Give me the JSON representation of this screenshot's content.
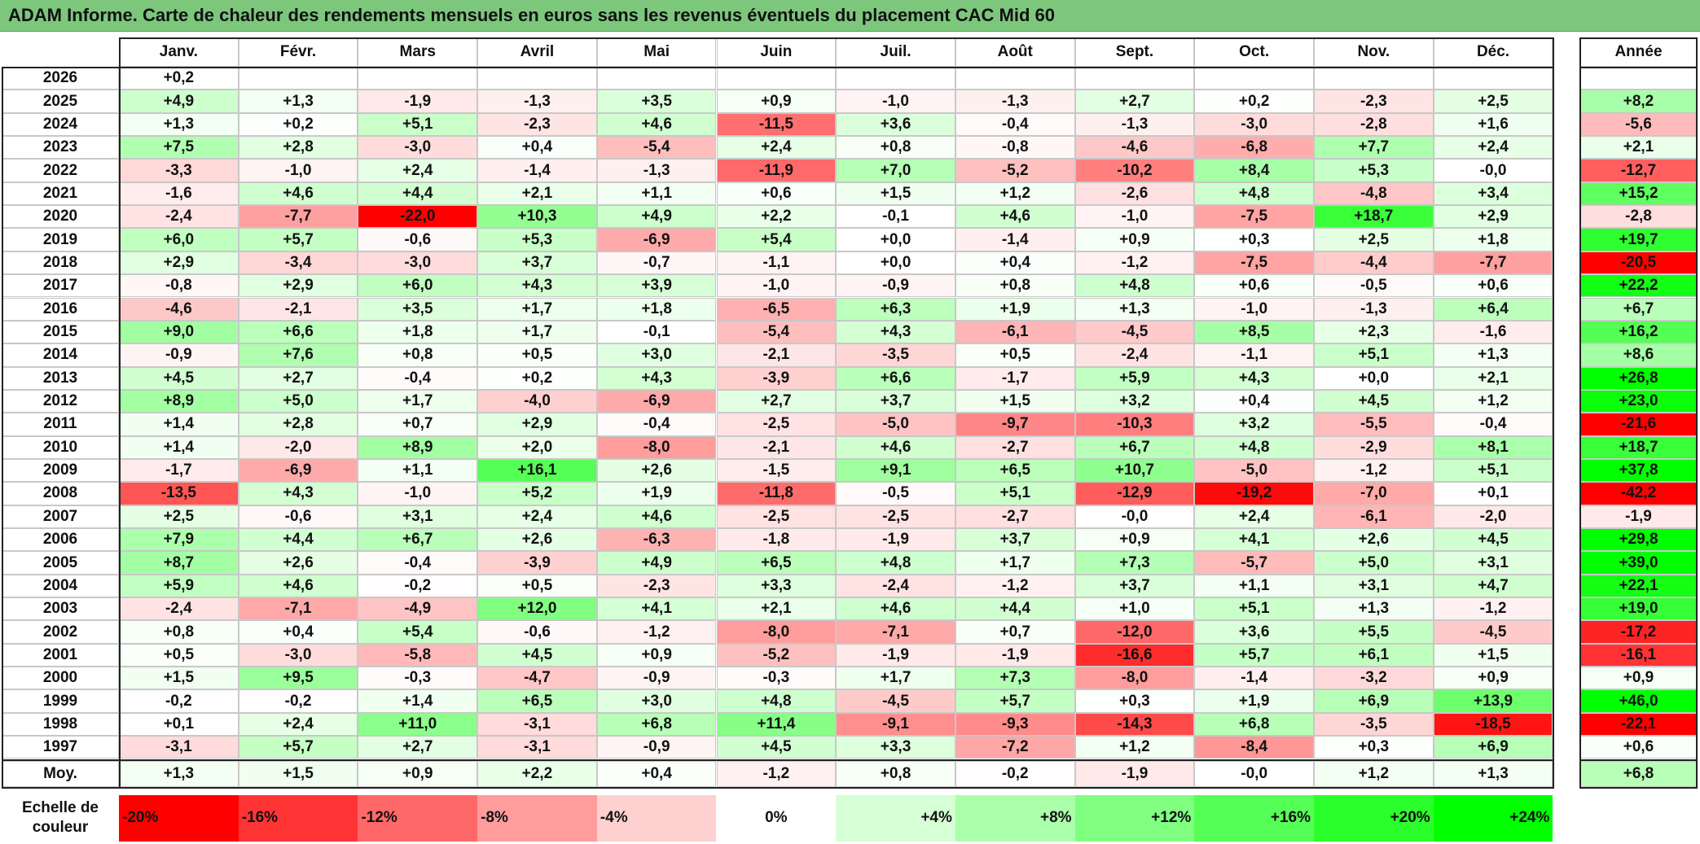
{
  "title": "ADAM Informe. Carte de chaleur des rendements mensuels en euros sans les revenus éventuels du placement CAC Mid 60",
  "months": [
    "Janv.",
    "Févr.",
    "Mars",
    "Avril",
    "Mai",
    "Juin",
    "Juil.",
    "Août",
    "Sept.",
    "Oct.",
    "Nov.",
    "Déc."
  ],
  "year_header": "Année",
  "avg_label": "Moy.",
  "scale_label": "Echelle de couleur",
  "scale_values": [
    "-20%",
    "-16%",
    "-12%",
    "-8%",
    "-4%",
    "0%",
    "+4%",
    "+8%",
    "+12%",
    "+16%",
    "+20%",
    "+24%"
  ],
  "colors": {
    "negative_max": "#ff0000",
    "positive_max": "#00ff00",
    "neutral": "#ffffff",
    "title_bg": "#7dc77d"
  },
  "chart_data": {
    "type": "heatmap",
    "rows": [
      {
        "year": "2026",
        "values": [
          "+0,2",
          "",
          "",
          "",
          "",
          "",
          "",
          "",
          "",
          "",
          "",
          ""
        ],
        "annual": ""
      },
      {
        "year": "2025",
        "values": [
          "+4,9",
          "+1,3",
          "-1,9",
          "-1,3",
          "+3,5",
          "+0,9",
          "-1,0",
          "-1,3",
          "+2,7",
          "+0,2",
          "-2,3",
          "+2,5"
        ],
        "annual": "+8,2"
      },
      {
        "year": "2024",
        "values": [
          "+1,3",
          "+0,2",
          "+5,1",
          "-2,3",
          "+4,6",
          "-11,5",
          "+3,6",
          "-0,4",
          "-1,3",
          "-3,0",
          "-2,8",
          "+1,6"
        ],
        "annual": "-5,6"
      },
      {
        "year": "2023",
        "values": [
          "+7,5",
          "+2,8",
          "-3,0",
          "+0,4",
          "-5,4",
          "+2,4",
          "+0,8",
          "-0,8",
          "-4,6",
          "-6,8",
          "+7,7",
          "+2,4"
        ],
        "annual": "+2,1"
      },
      {
        "year": "2022",
        "values": [
          "-3,3",
          "-1,0",
          "+2,4",
          "-1,4",
          "-1,3",
          "-11,9",
          "+7,0",
          "-5,2",
          "-10,2",
          "+8,4",
          "+5,3",
          "-0,0"
        ],
        "annual": "-12,7"
      },
      {
        "year": "2021",
        "values": [
          "-1,6",
          "+4,6",
          "+4,4",
          "+2,1",
          "+1,1",
          "+0,6",
          "+1,5",
          "+1,2",
          "-2,6",
          "+4,8",
          "-4,8",
          "+3,4"
        ],
        "annual": "+15,2"
      },
      {
        "year": "2020",
        "values": [
          "-2,4",
          "-7,7",
          "-22,0",
          "+10,3",
          "+4,9",
          "+2,2",
          "-0,1",
          "+4,6",
          "-1,0",
          "-7,5",
          "+18,7",
          "+2,9"
        ],
        "annual": "-2,8"
      },
      {
        "year": "2019",
        "values": [
          "+6,0",
          "+5,7",
          "-0,6",
          "+5,3",
          "-6,9",
          "+5,4",
          "+0,0",
          "-1,4",
          "+0,9",
          "+0,3",
          "+2,5",
          "+1,8"
        ],
        "annual": "+19,7"
      },
      {
        "year": "2018",
        "values": [
          "+2,9",
          "-3,4",
          "-3,0",
          "+3,7",
          "-0,7",
          "-1,1",
          "+0,0",
          "+0,4",
          "-1,2",
          "-7,5",
          "-4,4",
          "-7,7"
        ],
        "annual": "-20,5"
      },
      {
        "year": "2017",
        "values": [
          "-0,8",
          "+2,9",
          "+6,0",
          "+4,3",
          "+3,9",
          "-1,0",
          "-0,9",
          "+0,8",
          "+4,8",
          "+0,6",
          "-0,5",
          "+0,6"
        ],
        "annual": "+22,2"
      },
      {
        "year": "2016",
        "values": [
          "-4,6",
          "-2,1",
          "+3,5",
          "+1,7",
          "+1,8",
          "-6,5",
          "+6,3",
          "+1,9",
          "+1,3",
          "-1,0",
          "-1,3",
          "+6,4"
        ],
        "annual": "+6,7"
      },
      {
        "year": "2015",
        "values": [
          "+9,0",
          "+6,6",
          "+1,8",
          "+1,7",
          "-0,1",
          "-5,4",
          "+4,3",
          "-6,1",
          "-4,5",
          "+8,5",
          "+2,3",
          "-1,6"
        ],
        "annual": "+16,2"
      },
      {
        "year": "2014",
        "values": [
          "-0,9",
          "+7,6",
          "+0,8",
          "+0,5",
          "+3,0",
          "-2,1",
          "-3,5",
          "+0,5",
          "-2,4",
          "-1,1",
          "+5,1",
          "+1,3"
        ],
        "annual": "+8,6"
      },
      {
        "year": "2013",
        "values": [
          "+4,5",
          "+2,7",
          "-0,4",
          "+0,2",
          "+4,3",
          "-3,9",
          "+6,6",
          "-1,7",
          "+5,9",
          "+4,3",
          "+0,0",
          "+2,1"
        ],
        "annual": "+26,8"
      },
      {
        "year": "2012",
        "values": [
          "+8,9",
          "+5,0",
          "+1,7",
          "-4,0",
          "-6,9",
          "+2,7",
          "+3,7",
          "+1,5",
          "+3,2",
          "+0,4",
          "+4,5",
          "+1,2"
        ],
        "annual": "+23,0"
      },
      {
        "year": "2011",
        "values": [
          "+1,4",
          "+2,8",
          "+0,7",
          "+2,9",
          "-0,4",
          "-2,5",
          "-5,0",
          "-9,7",
          "-10,3",
          "+3,2",
          "-5,5",
          "-0,4"
        ],
        "annual": "-21,6"
      },
      {
        "year": "2010",
        "values": [
          "+1,4",
          "-2,0",
          "+8,9",
          "+2,0",
          "-8,0",
          "-2,1",
          "+4,6",
          "-2,7",
          "+6,7",
          "+4,8",
          "-2,9",
          "+8,1"
        ],
        "annual": "+18,7"
      },
      {
        "year": "2009",
        "values": [
          "-1,7",
          "-6,9",
          "+1,1",
          "+16,1",
          "+2,6",
          "-1,5",
          "+9,1",
          "+6,5",
          "+10,7",
          "-5,0",
          "-1,2",
          "+5,1"
        ],
        "annual": "+37,8"
      },
      {
        "year": "2008",
        "values": [
          "-13,5",
          "+4,3",
          "-1,0",
          "+5,2",
          "+1,9",
          "-11,8",
          "-0,5",
          "+5,1",
          "-12,9",
          "-19,2",
          "-7,0",
          "+0,1"
        ],
        "annual": "-42,2"
      },
      {
        "year": "2007",
        "values": [
          "+2,5",
          "-0,6",
          "+3,1",
          "+2,4",
          "+4,6",
          "-2,5",
          "-2,5",
          "-2,7",
          "-0,0",
          "+2,4",
          "-6,1",
          "-2,0"
        ],
        "annual": "-1,9"
      },
      {
        "year": "2006",
        "values": [
          "+7,9",
          "+4,4",
          "+6,7",
          "+2,6",
          "-6,3",
          "-1,8",
          "-1,9",
          "+3,7",
          "+0,9",
          "+4,1",
          "+2,6",
          "+4,5"
        ],
        "annual": "+29,8"
      },
      {
        "year": "2005",
        "values": [
          "+8,7",
          "+2,6",
          "-0,4",
          "-3,9",
          "+4,9",
          "+6,5",
          "+4,8",
          "+1,7",
          "+7,3",
          "-5,7",
          "+5,0",
          "+3,1"
        ],
        "annual": "+39,0"
      },
      {
        "year": "2004",
        "values": [
          "+5,9",
          "+4,6",
          "-0,2",
          "+0,5",
          "-2,3",
          "+3,3",
          "-2,4",
          "-1,2",
          "+3,7",
          "+1,1",
          "+3,1",
          "+4,7"
        ],
        "annual": "+22,1"
      },
      {
        "year": "2003",
        "values": [
          "-2,4",
          "-7,1",
          "-4,9",
          "+12,0",
          "+4,1",
          "+2,1",
          "+4,6",
          "+4,4",
          "+1,0",
          "+5,1",
          "+1,3",
          "-1,2"
        ],
        "annual": "+19,0"
      },
      {
        "year": "2002",
        "values": [
          "+0,8",
          "+0,4",
          "+5,4",
          "-0,6",
          "-1,2",
          "-8,0",
          "-7,1",
          "+0,7",
          "-12,0",
          "+3,6",
          "+5,5",
          "-4,5"
        ],
        "annual": "-17,2"
      },
      {
        "year": "2001",
        "values": [
          "+0,5",
          "-3,0",
          "-5,8",
          "+4,5",
          "+0,9",
          "-5,2",
          "-1,9",
          "-1,9",
          "-16,6",
          "+5,7",
          "+6,1",
          "+1,5"
        ],
        "annual": "-16,1"
      },
      {
        "year": "2000",
        "values": [
          "+1,5",
          "+9,5",
          "-0,3",
          "-4,7",
          "-0,9",
          "-0,3",
          "+1,7",
          "+7,3",
          "-8,0",
          "-1,4",
          "-3,2",
          "+0,9"
        ],
        "annual": "+0,9"
      },
      {
        "year": "1999",
        "values": [
          "-0,2",
          "-0,2",
          "+1,4",
          "+6,5",
          "+3,0",
          "+4,8",
          "-4,5",
          "+5,7",
          "+0,3",
          "+1,9",
          "+6,9",
          "+13,9"
        ],
        "annual": "+46,0"
      },
      {
        "year": "1998",
        "values": [
          "+0,1",
          "+2,4",
          "+11,0",
          "-3,1",
          "+6,8",
          "+11,4",
          "-9,1",
          "-9,3",
          "-14,3",
          "+6,8",
          "-3,5",
          "-18,5"
        ],
        "annual": "-22,1"
      },
      {
        "year": "1997",
        "values": [
          "-3,1",
          "+5,7",
          "+2,7",
          "-3,1",
          "-0,9",
          "+4,5",
          "+3,3",
          "-7,2",
          "+1,2",
          "-8,4",
          "+0,3",
          "+6,9"
        ],
        "annual": "+0,6"
      }
    ],
    "averages": [
      "+1,3",
      "+1,5",
      "+0,9",
      "+2,2",
      "+0,4",
      "-1,2",
      "+0,8",
      "-0,2",
      "-1,9",
      "-0,0",
      "+1,2",
      "+1,3"
    ],
    "average_annual": "+6,8"
  }
}
